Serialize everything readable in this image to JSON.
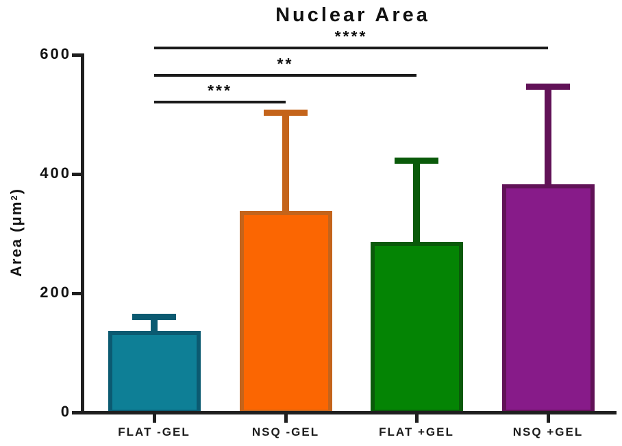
{
  "chart_data": {
    "type": "bar",
    "title": "Nuclear Area",
    "ylabel": "Area (μm²)",
    "ylabel_parts": {
      "main": "Area (μm",
      "sup": "2",
      "close": ")"
    },
    "xlabel": "",
    "ylim": [
      0,
      600
    ],
    "yticks": [
      0,
      200,
      400,
      600
    ],
    "ytick_labels": [
      "0",
      "200",
      "400",
      "600"
    ],
    "grid": false,
    "legend": "none",
    "categories": [
      "FLAT -GEL",
      "NSQ -GEL",
      "FLAT +GEL",
      "NSQ +GEL"
    ],
    "values": [
      137,
      338,
      286,
      383
    ],
    "errors_sd": [
      28,
      170,
      142,
      169
    ],
    "error_tops": [
      165,
      508,
      428,
      552
    ],
    "bar_fill_colors": [
      "#0e7f96",
      "#fb6602",
      "#048404",
      "#871b89"
    ],
    "bar_edge_colors": [
      "#0b5a71",
      "#c4641b",
      "#0a5a0a",
      "#611257"
    ],
    "axis_color": "#1f1f1f",
    "significance": [
      {
        "from": "FLAT -GEL",
        "to": "NSQ -GEL",
        "stars": "***"
      },
      {
        "from": "FLAT -GEL",
        "to": "FLAT +GEL",
        "stars": "**"
      },
      {
        "from": "FLAT -GEL",
        "to": "NSQ +GEL",
        "stars": "****"
      }
    ]
  }
}
